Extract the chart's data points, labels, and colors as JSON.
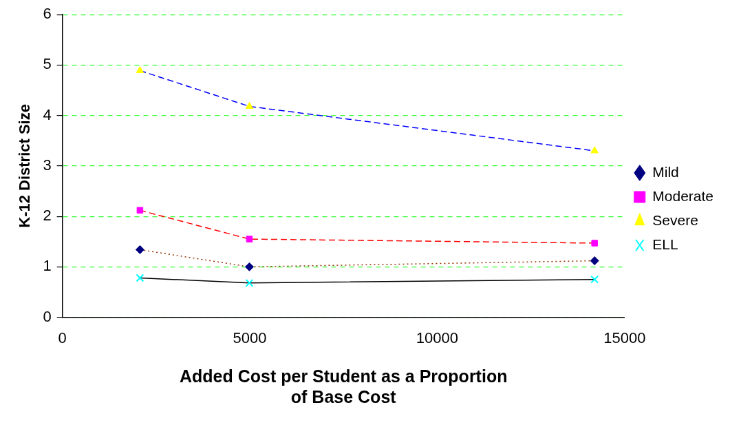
{
  "chart_data": {
    "type": "line",
    "xlabel": "Added Cost per Student as a Proportion of Base Cost",
    "ylabel": "K-12 District Size",
    "x": [
      2070,
      4990,
      14200
    ],
    "series": [
      {
        "name": "Mild",
        "color": "#993300",
        "colors": [
          "#000080",
          "#000080",
          "#000080"
        ],
        "marker": "diamond",
        "line_style": "dotted",
        "values": [
          1.34,
          1.0,
          1.12
        ]
      },
      {
        "name": "Moderate",
        "color": "#ff0000",
        "colors": [
          "#ff00ff",
          "#ff00ff",
          "#ff00ff"
        ],
        "marker": "square",
        "line_style": "dashed",
        "values": [
          2.12,
          1.55,
          1.47
        ]
      },
      {
        "name": "Severe",
        "color": "#0000ff",
        "colors": [
          "#ffff00",
          "#ffff00",
          "#ffff00"
        ],
        "marker": "triangle",
        "line_style": "dashed",
        "values": [
          4.89,
          4.18,
          3.3
        ]
      },
      {
        "name": "ELL",
        "color": "#000000",
        "colors": [
          "#00ffff",
          "#00ffff",
          "#00ffff"
        ],
        "marker": "cross",
        "line_style": "solid",
        "values": [
          0.78,
          0.68,
          0.75
        ]
      }
    ],
    "xlim": [
      0,
      15000
    ],
    "xticks": [
      0,
      5000,
      10000,
      15000
    ],
    "ylim": [
      0,
      6
    ],
    "yticks": [
      0,
      1,
      2,
      3,
      4,
      5,
      6
    ],
    "grid": "y",
    "legend": "right"
  }
}
